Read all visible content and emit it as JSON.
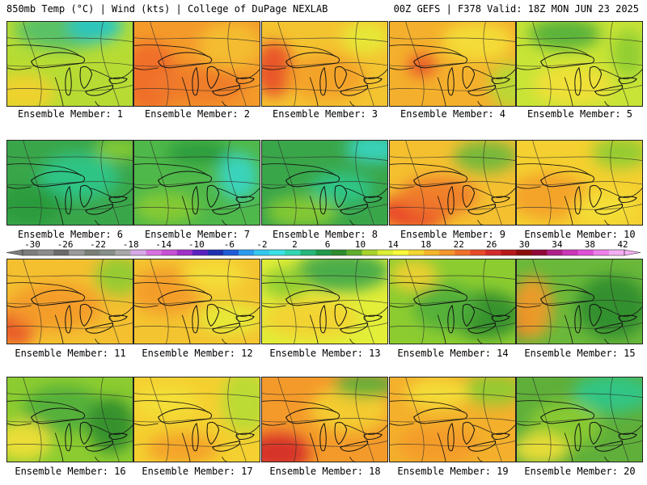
{
  "header": {
    "left": "850mb Temp (°C) | Wind (kts) | College of DuPage NEXLAB",
    "right": "00Z GEFS | F378 Valid: 18Z MON JUN 23 2025"
  },
  "colorbar": {
    "ticks": [
      "-30",
      "-26",
      "-22",
      "-18",
      "-14",
      "-10",
      "-6",
      "-2",
      "2",
      "6",
      "10",
      "14",
      "18",
      "22",
      "26",
      "30",
      "34",
      "38",
      "42"
    ],
    "colors": [
      "#7d7d7d",
      "#8c8c8c",
      "#6a6a6a",
      "#9a9a9a",
      "#7a8078",
      "#888f88",
      "#a8a8a8",
      "#d7a8e8",
      "#d870e0",
      "#c850d8",
      "#a030c8",
      "#5a20c0",
      "#2030b0",
      "#1f5ad8",
      "#2a9bf0",
      "#33c8f0",
      "#39e2e6",
      "#2fd6b4",
      "#25b87a",
      "#1f9a4a",
      "#2e8c2e",
      "#5fae2b",
      "#a6d22a",
      "#dcee36",
      "#f8f83a",
      "#f4d630",
      "#f4b628",
      "#f4962a",
      "#f0702a",
      "#e84a2a",
      "#d42a2a",
      "#b81818",
      "#8c0c0c",
      "#900838",
      "#b0208a",
      "#cc36b8",
      "#e050d8",
      "#ee80ea",
      "#f4aef4"
    ]
  },
  "panels": [
    {
      "caption": "Ensemble Member: 1",
      "base": "#b6dc34",
      "blobs": [
        {
          "c": "#4fbf6a"
        },
        {
          "c": "#26c6c8"
        },
        {
          "c": "#f4d02e"
        }
      ]
    },
    {
      "caption": "Ensemble Member: 2",
      "base": "#f49a2a",
      "blobs": [
        {
          "c": "#f06a2a"
        },
        {
          "c": "#f4c030"
        },
        {
          "c": "#f07a2a"
        }
      ]
    },
    {
      "caption": "Ensemble Member: 3",
      "base": "#f4c430",
      "blobs": [
        {
          "c": "#e84a2a"
        },
        {
          "c": "#f4a02a"
        },
        {
          "c": "#e6ec38"
        }
      ]
    },
    {
      "caption": "Ensemble Member: 4",
      "base": "#f4b02c",
      "blobs": [
        {
          "c": "#e8502a"
        },
        {
          "c": "#f4e036"
        },
        {
          "c": "#b6dc34"
        }
      ]
    },
    {
      "caption": "Ensemble Member: 5",
      "base": "#c8e436",
      "blobs": [
        {
          "c": "#4fae3a"
        },
        {
          "c": "#f4e036"
        },
        {
          "c": "#8ccc30"
        }
      ]
    },
    {
      "caption": "Ensemble Member: 6",
      "base": "#3aa64a",
      "blobs": [
        {
          "c": "#2fc88c"
        },
        {
          "c": "#8ccc30"
        },
        {
          "c": "#2a9a3a"
        }
      ]
    },
    {
      "caption": "Ensemble Member: 7",
      "base": "#4fb84a",
      "blobs": [
        {
          "c": "#36d6c8"
        },
        {
          "c": "#8ccc30"
        },
        {
          "c": "#2a9a3a"
        }
      ]
    },
    {
      "caption": "Ensemble Member: 8",
      "base": "#3aa64a",
      "blobs": [
        {
          "c": "#36d6c8"
        },
        {
          "c": "#8ccc30"
        },
        {
          "c": "#2fc88c"
        }
      ]
    },
    {
      "caption": "Ensemble Member: 9",
      "base": "#f4c030",
      "blobs": [
        {
          "c": "#e83a2a"
        },
        {
          "c": "#f07a2a"
        },
        {
          "c": "#6ab83a"
        }
      ]
    },
    {
      "caption": "Ensemble Member: 10",
      "base": "#f4d030",
      "blobs": [
        {
          "c": "#f4a02a"
        },
        {
          "c": "#8ccc30"
        },
        {
          "c": "#f4e036"
        }
      ]
    },
    {
      "caption": "Ensemble Member: 11",
      "base": "#f4c030",
      "blobs": [
        {
          "c": "#e8502a"
        },
        {
          "c": "#f49a2a"
        },
        {
          "c": "#8ccc30"
        }
      ]
    },
    {
      "caption": "Ensemble Member: 12",
      "base": "#f4c430",
      "blobs": [
        {
          "c": "#f49a2a"
        },
        {
          "c": "#e6ec38"
        },
        {
          "c": "#f4e036"
        }
      ]
    },
    {
      "caption": "Ensemble Member: 13",
      "base": "#e2ee38",
      "blobs": [
        {
          "c": "#3aa64a"
        },
        {
          "c": "#f4d030"
        },
        {
          "c": "#8ccc30"
        }
      ]
    },
    {
      "caption": "Ensemble Member: 14",
      "base": "#8ccc30",
      "blobs": [
        {
          "c": "#f4d030"
        },
        {
          "c": "#2e8c2e"
        },
        {
          "c": "#4fae3a"
        }
      ]
    },
    {
      "caption": "Ensemble Member: 15",
      "base": "#6ab83a",
      "blobs": [
        {
          "c": "#e83a2a"
        },
        {
          "c": "#f49a2a"
        },
        {
          "c": "#2e8c2e"
        }
      ]
    },
    {
      "caption": "Ensemble Member: 16",
      "base": "#8ccc30",
      "blobs": [
        {
          "c": "#4fae3a"
        },
        {
          "c": "#f4e036"
        },
        {
          "c": "#2e8c2e"
        }
      ]
    },
    {
      "caption": "Ensemble Member: 17",
      "base": "#f4d030",
      "blobs": [
        {
          "c": "#b6dc34"
        },
        {
          "c": "#f4a02a"
        },
        {
          "c": "#f4e036"
        }
      ]
    },
    {
      "caption": "Ensemble Member: 18",
      "base": "#f49a2a",
      "blobs": [
        {
          "c": "#d42a2a"
        },
        {
          "c": "#f4d030"
        },
        {
          "c": "#4fae3a"
        }
      ]
    },
    {
      "caption": "Ensemble Member: 19",
      "base": "#f4b02c",
      "blobs": [
        {
          "c": "#8ccc30"
        },
        {
          "c": "#f4e036"
        },
        {
          "c": "#f49a2a"
        }
      ]
    },
    {
      "caption": "Ensemble Member: 20",
      "base": "#5faf3a",
      "blobs": [
        {
          "c": "#2fc88c"
        },
        {
          "c": "#8ccc30"
        },
        {
          "c": "#f4e036"
        }
      ]
    }
  ]
}
